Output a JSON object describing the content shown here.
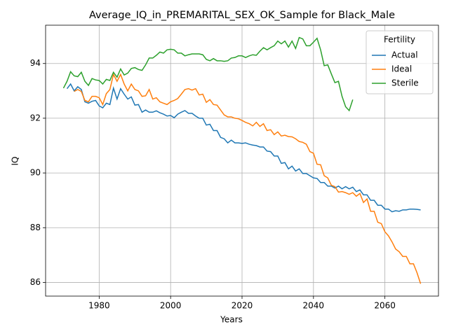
{
  "chart_data": {
    "type": "line",
    "title": "Average_IQ_in_PREMARITAL_SEX_OK_Sample for Black_Male",
    "x_label": "Years",
    "y_label": "IQ",
    "legend_title": "Fertility",
    "legend_position": "upper right",
    "grid": true,
    "xlim": [
      1965,
      2075
    ],
    "xticks": [
      1980,
      2000,
      2020,
      2040,
      2060
    ],
    "ylim": [
      85.5,
      95.4
    ],
    "yticks": [
      86,
      88,
      90,
      92,
      94
    ],
    "x": [
      1970,
      1971,
      1972,
      1973,
      1974,
      1975,
      1976,
      1977,
      1978,
      1979,
      1980,
      1981,
      1982,
      1983,
      1984,
      1985,
      1986,
      1987,
      1988,
      1989,
      1990,
      1991,
      1992,
      1993,
      1994,
      1995,
      1996,
      1997,
      1998,
      1999,
      2000,
      2001,
      2002,
      2003,
      2004,
      2005,
      2006,
      2007,
      2008,
      2009,
      2010,
      2011,
      2012,
      2013,
      2014,
      2015,
      2016,
      2017,
      2018,
      2019,
      2020,
      2021,
      2022,
      2023,
      2024,
      2025,
      2026,
      2027,
      2028,
      2029,
      2030,
      2031,
      2032,
      2033,
      2034,
      2035,
      2036,
      2037,
      2038,
      2039,
      2040,
      2041,
      2042,
      2043,
      2044,
      2045,
      2046,
      2047,
      2048,
      2049,
      2050,
      2051,
      2052,
      2053,
      2054,
      2055,
      2056,
      2057,
      2058,
      2059,
      2060,
      2061,
      2062,
      2063,
      2064,
      2065,
      2066,
      2067,
      2068,
      2069,
      2070
    ],
    "series": [
      {
        "name": "Actual",
        "color": "#1f77b4",
        "values": [
          null,
          93.08,
          93.25,
          93.0,
          93.15,
          93.05,
          92.6,
          92.55,
          92.62,
          92.65,
          92.45,
          92.38,
          92.55,
          92.5,
          93.1,
          92.7,
          93.08,
          92.88,
          92.7,
          92.78,
          92.48,
          92.5,
          92.22,
          92.3,
          92.22,
          92.22,
          92.27,
          92.2,
          92.15,
          92.08,
          92.1,
          92.02,
          92.15,
          92.22,
          92.28,
          92.18,
          92.18,
          92.08,
          92.0,
          92.0,
          91.75,
          91.78,
          91.55,
          91.55,
          91.3,
          91.25,
          91.1,
          91.2,
          91.1,
          91.1,
          91.08,
          91.1,
          91.05,
          91.02,
          91.0,
          90.95,
          90.95,
          90.8,
          90.78,
          90.62,
          90.62,
          90.35,
          90.38,
          90.15,
          90.25,
          90.07,
          90.15,
          89.98,
          89.98,
          89.9,
          89.82,
          89.8,
          89.65,
          89.65,
          89.52,
          89.52,
          89.45,
          89.52,
          89.42,
          89.5,
          89.42,
          89.48,
          89.32,
          89.38,
          89.2,
          89.2,
          89.0,
          89.0,
          88.82,
          88.82,
          88.68,
          88.68,
          88.58,
          88.62,
          88.6,
          88.65,
          88.65,
          88.68,
          88.68,
          88.67,
          88.65
        ]
      },
      {
        "name": "Ideal",
        "color": "#ff7f0e",
        "values": [
          null,
          null,
          null,
          92.98,
          93.05,
          92.98,
          92.65,
          92.6,
          92.8,
          92.8,
          92.75,
          92.5,
          92.9,
          93.05,
          93.6,
          93.35,
          93.6,
          93.25,
          93.0,
          93.25,
          93.05,
          93.0,
          92.8,
          92.82,
          93.05,
          92.7,
          92.75,
          92.6,
          92.55,
          92.5,
          92.6,
          92.65,
          92.72,
          92.88,
          93.05,
          93.08,
          93.03,
          93.08,
          92.85,
          92.88,
          92.58,
          92.68,
          92.5,
          92.48,
          92.3,
          92.12,
          92.05,
          92.05,
          92.0,
          91.98,
          91.92,
          91.85,
          91.8,
          91.72,
          91.85,
          91.7,
          91.8,
          91.55,
          91.58,
          91.4,
          91.5,
          91.35,
          91.38,
          91.33,
          91.32,
          91.25,
          91.15,
          91.12,
          91.05,
          90.78,
          90.72,
          90.32,
          90.3,
          89.9,
          89.82,
          89.55,
          89.5,
          89.3,
          89.32,
          89.28,
          89.22,
          89.28,
          89.15,
          89.25,
          88.92,
          89.05,
          88.6,
          88.6,
          88.2,
          88.15,
          87.85,
          87.7,
          87.48,
          87.22,
          87.12,
          86.95,
          86.95,
          86.68,
          86.68,
          86.35,
          85.95
        ]
      },
      {
        "name": "Sterile",
        "color": "#2ca02c",
        "values": [
          93.1,
          93.35,
          93.7,
          93.55,
          93.52,
          93.68,
          93.35,
          93.2,
          93.45,
          93.4,
          93.38,
          93.25,
          93.42,
          93.38,
          93.68,
          93.5,
          93.8,
          93.58,
          93.65,
          93.82,
          93.85,
          93.78,
          93.75,
          93.95,
          94.2,
          94.2,
          94.3,
          94.42,
          94.38,
          94.5,
          94.52,
          94.5,
          94.38,
          94.38,
          94.28,
          94.32,
          94.35,
          94.35,
          94.35,
          94.32,
          94.15,
          94.1,
          94.18,
          94.1,
          94.1,
          94.08,
          94.1,
          94.2,
          94.22,
          94.28,
          94.28,
          94.22,
          94.28,
          94.32,
          94.3,
          94.45,
          94.58,
          94.5,
          94.58,
          94.65,
          94.82,
          94.72,
          94.82,
          94.6,
          94.82,
          94.55,
          94.95,
          94.9,
          94.65,
          94.65,
          94.78,
          94.92,
          94.5,
          93.92,
          93.95,
          93.62,
          93.3,
          93.35,
          92.8,
          92.42,
          92.28,
          92.68,
          null,
          null,
          null,
          null,
          null,
          null,
          null,
          null,
          null,
          null,
          null,
          null,
          null,
          null,
          null,
          null,
          null,
          null,
          null
        ]
      }
    ]
  }
}
